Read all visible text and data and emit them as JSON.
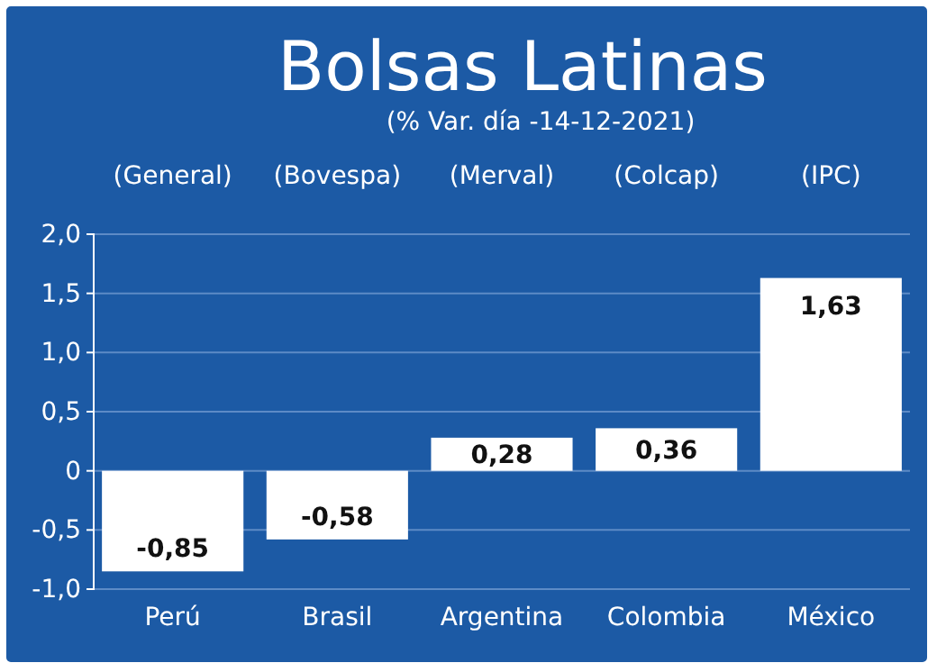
{
  "chart_data": {
    "type": "bar",
    "title": "Bolsas Latinas",
    "subtitle": "(% Var. día -14-12-2021)",
    "categories": [
      "Perú",
      "Brasil",
      "Argentina",
      "Colombia",
      "México"
    ],
    "values": [
      -0.85,
      -0.58,
      0.28,
      0.36,
      1.63
    ],
    "value_labels": [
      "-0,85",
      "-0,58",
      "0,28",
      "0,36",
      "1,63"
    ],
    "color": "#ffffff",
    "annotations": [
      "(General)",
      "(Bovespa)",
      "(Merval)",
      "(Colcap)",
      "(IPC)"
    ],
    "ylim": [
      -1.0,
      2.0
    ],
    "yticks": [
      {
        "value": -1.0,
        "label": "-1,0"
      },
      {
        "value": -0.5,
        "label": "-0,5"
      },
      {
        "value": 0,
        "label": "0"
      },
      {
        "value": 0.5,
        "label": "0,5"
      },
      {
        "value": 1.0,
        "label": "1,0"
      },
      {
        "value": 1.5,
        "label": "1,5"
      },
      {
        "value": 2.0,
        "label": "2,0"
      }
    ],
    "grid": "y"
  }
}
